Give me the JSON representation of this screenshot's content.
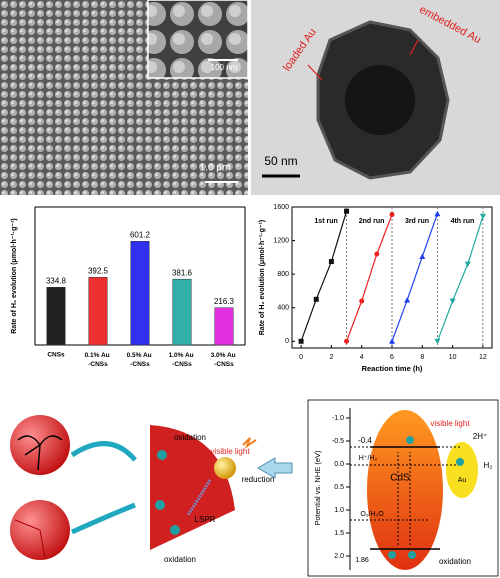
{
  "images": {
    "sem": {
      "inset_scale": "100 nm",
      "scale": "1.0 μm"
    },
    "tem": {
      "labels": [
        "loaded Au",
        "embedded Au"
      ],
      "scale": "50 nm"
    }
  },
  "chart_data": [
    {
      "type": "bar",
      "ylabel": "Rate of H₂ evolution (μmol·h⁻¹·g⁻¹)",
      "categories": [
        "CNSs",
        "0.1% Au -CNSs",
        "0.5% Au -CNSs",
        "1.0% Au -CNSs",
        "3.0% Au -CNSs"
      ],
      "values": [
        334.8,
        392.5,
        601.2,
        381.6,
        216.3
      ],
      "colors": [
        "#222222",
        "#ee3030",
        "#3030ee",
        "#30b0a8",
        "#e030e0"
      ],
      "ylim": [
        0,
        800
      ]
    },
    {
      "type": "line",
      "xlabel": "Reaction time (h)",
      "ylabel": "Rate of H₂ evolution (μmol·h⁻¹·g⁻¹)",
      "xlim": [
        -0.6,
        12.6
      ],
      "xticks": [
        0,
        2,
        4,
        6,
        8,
        10,
        12
      ],
      "ylim": [
        -80,
        1600
      ],
      "yticks": [
        0,
        400,
        800,
        1200,
        1600
      ],
      "series": [
        {
          "name": "1st run",
          "color": "#111111",
          "marker": "square",
          "x": [
            0,
            1,
            2,
            3
          ],
          "values": [
            0,
            500,
            950,
            1550
          ]
        },
        {
          "name": "2nd run",
          "color": "#ee2020",
          "marker": "circle",
          "x": [
            3,
            4,
            5,
            6
          ],
          "values": [
            0,
            480,
            1040,
            1510
          ]
        },
        {
          "name": "3rd run",
          "color": "#2040ee",
          "marker": "triangle-up",
          "x": [
            6,
            7,
            8,
            9
          ],
          "values": [
            0,
            490,
            1010,
            1520
          ]
        },
        {
          "name": "4th run",
          "color": "#20a8a0",
          "marker": "triangle-down",
          "x": [
            9,
            10,
            11,
            12
          ],
          "values": [
            0,
            480,
            920,
            1490
          ]
        }
      ]
    }
  ],
  "schematic": {
    "photocatalyst": {
      "labels": [
        "oxidation",
        "visible light",
        "reduction",
        "LSPR",
        "oxidation"
      ]
    },
    "energy_diagram": {
      "axis_label": "Potential vs. NHE (eV)",
      "ticks": [
        "-1.0",
        "-0.5",
        "0.0",
        "0.5",
        "1.0",
        "1.5",
        "2.0"
      ],
      "levels": [
        "-0.4",
        "H⁺/H₂",
        "O₂/H₂O",
        "1.86"
      ],
      "semiconductor": "CdS",
      "metal": "Au",
      "light": "visible light",
      "products": [
        "2H⁺",
        "H₂"
      ],
      "process": "oxidation"
    }
  }
}
